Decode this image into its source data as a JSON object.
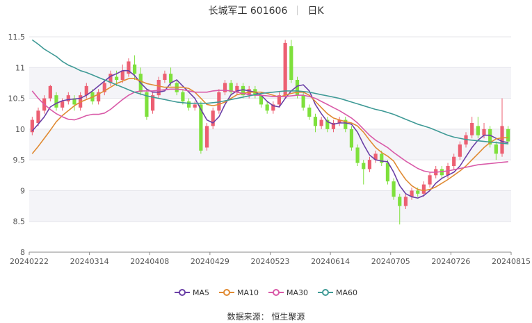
{
  "header": {
    "title": "长城军工 601606",
    "period": "日K"
  },
  "source_note": "数据来源： 恒生聚源",
  "colors": {
    "up": "#ec5f72",
    "down": "#7ee03c",
    "ma5": "#6a3fa6",
    "ma10": "#e08a32",
    "ma30": "#d95aa8",
    "ma60": "#3f9a96",
    "grid": "#e4e4ea",
    "band": "#f4f4f8"
  },
  "chart_data": {
    "type": "candlestick",
    "title": "长城军工 601606",
    "subtitle": "日K",
    "ylim": [
      8,
      11.5
    ],
    "yticks": [
      "8",
      "8.5",
      "9",
      "9.5",
      "10",
      "10.5",
      "11",
      "11.5"
    ],
    "xtick_labels": [
      "20240222",
      "20240314",
      "20240408",
      "20240429",
      "20240523",
      "20240614",
      "20240705",
      "20240726",
      "20240815"
    ],
    "candles": [
      [
        9.95,
        10.15,
        9.9,
        10.2
      ],
      [
        10.1,
        10.3,
        10.05,
        10.35
      ],
      [
        10.3,
        10.5,
        10.25,
        10.55
      ],
      [
        10.5,
        10.7,
        10.45,
        10.72
      ],
      [
        10.55,
        10.35,
        10.3,
        10.6
      ],
      [
        10.35,
        10.45,
        10.3,
        10.5
      ],
      [
        10.45,
        10.55,
        10.4,
        10.6
      ],
      [
        10.5,
        10.4,
        10.3,
        10.55
      ],
      [
        10.35,
        10.55,
        10.3,
        10.6
      ],
      [
        10.55,
        10.7,
        10.5,
        10.75
      ],
      [
        10.6,
        10.45,
        10.4,
        10.65
      ],
      [
        10.45,
        10.6,
        10.4,
        10.65
      ],
      [
        10.6,
        10.75,
        10.55,
        10.8
      ],
      [
        10.75,
        10.9,
        10.7,
        10.95
      ],
      [
        10.85,
        10.8,
        10.7,
        10.95
      ],
      [
        10.8,
        10.95,
        10.75,
        11.05
      ],
      [
        10.9,
        11.1,
        10.85,
        11.15
      ],
      [
        11.05,
        10.9,
        10.8,
        11.2
      ],
      [
        10.9,
        10.6,
        10.55,
        11.0
      ],
      [
        10.6,
        10.2,
        10.15,
        10.65
      ],
      [
        10.3,
        10.55,
        10.25,
        10.6
      ],
      [
        10.55,
        10.8,
        10.5,
        10.85
      ],
      [
        10.8,
        10.9,
        10.75,
        10.95
      ],
      [
        10.9,
        10.75,
        10.7,
        11.0
      ],
      [
        10.75,
        10.6,
        10.55,
        10.8
      ],
      [
        10.6,
        10.45,
        10.4,
        10.65
      ],
      [
        10.45,
        10.35,
        10.3,
        10.5
      ],
      [
        10.35,
        10.4,
        10.3,
        10.45
      ],
      [
        10.4,
        9.65,
        9.6,
        10.45
      ],
      [
        9.7,
        10.05,
        9.65,
        10.1
      ],
      [
        10.05,
        10.3,
        10.0,
        10.35
      ],
      [
        10.3,
        10.6,
        10.25,
        10.65
      ],
      [
        10.6,
        10.75,
        10.55,
        10.8
      ],
      [
        10.75,
        10.6,
        10.55,
        10.8
      ],
      [
        10.6,
        10.7,
        10.55,
        10.75
      ],
      [
        10.7,
        10.55,
        10.5,
        10.75
      ],
      [
        10.55,
        10.65,
        10.5,
        10.7
      ],
      [
        10.65,
        10.55,
        10.5,
        10.7
      ],
      [
        10.55,
        10.4,
        10.35,
        10.6
      ],
      [
        10.4,
        10.3,
        10.25,
        10.45
      ],
      [
        10.3,
        10.4,
        10.25,
        10.45
      ],
      [
        10.4,
        10.55,
        10.35,
        10.6
      ],
      [
        10.55,
        11.4,
        10.5,
        11.45
      ],
      [
        11.35,
        10.8,
        10.75,
        11.45
      ],
      [
        10.8,
        10.55,
        10.5,
        10.85
      ],
      [
        10.55,
        10.35,
        10.3,
        10.6
      ],
      [
        10.35,
        10.2,
        10.15,
        10.4
      ],
      [
        10.2,
        10.05,
        9.95,
        10.25
      ],
      [
        10.05,
        10.15,
        10.0,
        10.2
      ],
      [
        10.15,
        10.0,
        9.95,
        10.2
      ],
      [
        10.0,
        10.1,
        9.95,
        10.15
      ],
      [
        10.1,
        10.15,
        10.05,
        10.2
      ],
      [
        10.15,
        10.0,
        9.95,
        10.2
      ],
      [
        10.0,
        9.7,
        9.65,
        10.05
      ],
      [
        9.7,
        9.45,
        9.4,
        9.75
      ],
      [
        9.45,
        9.35,
        9.1,
        9.5
      ],
      [
        9.35,
        9.5,
        9.3,
        9.55
      ],
      [
        9.5,
        9.6,
        9.45,
        9.65
      ],
      [
        9.6,
        9.45,
        9.4,
        9.65
      ],
      [
        9.45,
        9.15,
        9.1,
        9.5
      ],
      [
        9.15,
        8.9,
        8.85,
        9.2
      ],
      [
        8.9,
        8.75,
        8.45,
        8.95
      ],
      [
        8.75,
        8.9,
        8.7,
        8.95
      ],
      [
        8.9,
        9.0,
        8.85,
        9.05
      ],
      [
        9.0,
        8.95,
        8.9,
        9.05
      ],
      [
        8.95,
        9.1,
        8.9,
        9.15
      ],
      [
        9.1,
        9.25,
        9.05,
        9.3
      ],
      [
        9.25,
        9.35,
        9.2,
        9.4
      ],
      [
        9.35,
        9.25,
        9.2,
        9.4
      ],
      [
        9.25,
        9.4,
        9.2,
        9.45
      ],
      [
        9.4,
        9.55,
        9.35,
        9.6
      ],
      [
        9.55,
        9.75,
        9.5,
        9.8
      ],
      [
        9.75,
        9.9,
        9.7,
        9.95
      ],
      [
        9.9,
        10.1,
        9.85,
        10.2
      ],
      [
        10.05,
        9.9,
        9.85,
        10.2
      ],
      [
        9.9,
        10.0,
        9.85,
        10.1
      ],
      [
        10.0,
        9.75,
        9.7,
        10.05
      ],
      [
        9.75,
        9.6,
        9.5,
        9.8
      ],
      [
        9.6,
        10.05,
        9.55,
        10.5
      ],
      [
        10.0,
        9.8,
        9.75,
        10.05
      ]
    ],
    "series": [
      {
        "name": "MA5",
        "values": [
          9.97,
          10.08,
          10.2,
          10.36,
          10.42,
          10.46,
          10.48,
          10.49,
          10.5,
          10.55,
          10.62,
          10.7,
          10.78,
          10.86,
          10.9,
          10.95,
          10.95,
          10.87,
          10.75,
          10.65,
          10.6,
          10.6,
          10.62,
          10.75,
          10.8,
          10.7,
          10.6,
          10.5,
          10.32,
          10.15,
          10.1,
          10.2,
          10.4,
          10.56,
          10.62,
          10.64,
          10.62,
          10.6,
          10.55,
          10.45,
          10.38,
          10.36,
          10.5,
          10.62,
          10.7,
          10.72,
          10.62,
          10.4,
          10.25,
          10.12,
          10.08,
          10.1,
          10.1,
          10.08,
          9.95,
          9.75,
          9.58,
          9.5,
          9.48,
          9.47,
          9.3,
          9.08,
          8.95,
          8.9,
          8.88,
          8.92,
          9.0,
          9.12,
          9.2,
          9.25,
          9.3,
          9.4,
          9.55,
          9.7,
          9.82,
          9.9,
          9.9,
          9.85,
          9.8,
          9.78
        ]
      },
      {
        "name": "MA10",
        "values": [
          9.6,
          9.72,
          9.85,
          9.98,
          10.12,
          10.22,
          10.3,
          10.38,
          10.44,
          10.48,
          10.52,
          10.57,
          10.62,
          10.68,
          10.74,
          10.78,
          10.82,
          10.82,
          10.78,
          10.74,
          10.72,
          10.7,
          10.68,
          10.68,
          10.68,
          10.68,
          10.66,
          10.6,
          10.5,
          10.4,
          10.38,
          10.4,
          10.44,
          10.5,
          10.56,
          10.58,
          10.6,
          10.6,
          10.6,
          10.58,
          10.55,
          10.52,
          10.55,
          10.58,
          10.6,
          10.6,
          10.55,
          10.45,
          10.35,
          10.25,
          10.18,
          10.15,
          10.12,
          10.1,
          10.05,
          9.95,
          9.82,
          9.7,
          9.62,
          9.56,
          9.48,
          9.32,
          9.18,
          9.08,
          9.02,
          9.0,
          9.02,
          9.06,
          9.12,
          9.18,
          9.25,
          9.32,
          9.4,
          9.5,
          9.6,
          9.7,
          9.78,
          9.84,
          9.86,
          9.86
        ]
      },
      {
        "name": "MA30",
        "values": [
          10.62,
          10.5,
          10.4,
          10.32,
          10.25,
          10.2,
          10.16,
          10.15,
          10.18,
          10.22,
          10.24,
          10.24,
          10.26,
          10.32,
          10.4,
          10.48,
          10.55,
          10.6,
          10.62,
          10.62,
          10.62,
          10.63,
          10.64,
          10.65,
          10.65,
          10.64,
          10.62,
          10.6,
          10.6,
          10.6,
          10.62,
          10.63,
          10.63,
          10.62,
          10.6,
          10.58,
          10.56,
          10.55,
          10.55,
          10.54,
          10.53,
          10.53,
          10.53,
          10.54,
          10.55,
          10.55,
          10.53,
          10.5,
          10.45,
          10.4,
          10.35,
          10.3,
          10.24,
          10.18,
          10.1,
          10.0,
          9.9,
          9.82,
          9.76,
          9.7,
          9.62,
          9.55,
          9.48,
          9.42,
          9.36,
          9.32,
          9.3,
          9.3,
          9.31,
          9.32,
          9.34,
          9.36,
          9.38,
          9.4,
          9.42,
          9.43,
          9.44,
          9.45,
          9.46,
          9.47
        ]
      },
      {
        "name": "MA60",
        "values": [
          11.45,
          11.38,
          11.3,
          11.24,
          11.18,
          11.1,
          11.04,
          11.0,
          10.95,
          10.92,
          10.88,
          10.84,
          10.8,
          10.76,
          10.72,
          10.68,
          10.64,
          10.6,
          10.57,
          10.54,
          10.52,
          10.5,
          10.48,
          10.46,
          10.44,
          10.43,
          10.42,
          10.42,
          10.42,
          10.42,
          10.43,
          10.44,
          10.46,
          10.48,
          10.5,
          10.52,
          10.54,
          10.56,
          10.58,
          10.59,
          10.6,
          10.61,
          10.62,
          10.62,
          10.62,
          10.61,
          10.6,
          10.58,
          10.56,
          10.54,
          10.52,
          10.5,
          10.47,
          10.44,
          10.41,
          10.38,
          10.35,
          10.32,
          10.3,
          10.27,
          10.24,
          10.2,
          10.16,
          10.12,
          10.08,
          10.05,
          10.02,
          9.98,
          9.94,
          9.9,
          9.87,
          9.85,
          9.83,
          9.82,
          9.81,
          9.8,
          9.79,
          9.78,
          9.77,
          9.76
        ]
      }
    ],
    "legend": [
      "MA5",
      "MA10",
      "MA30",
      "MA60"
    ],
    "legend_position": "bottom",
    "grid": true
  }
}
